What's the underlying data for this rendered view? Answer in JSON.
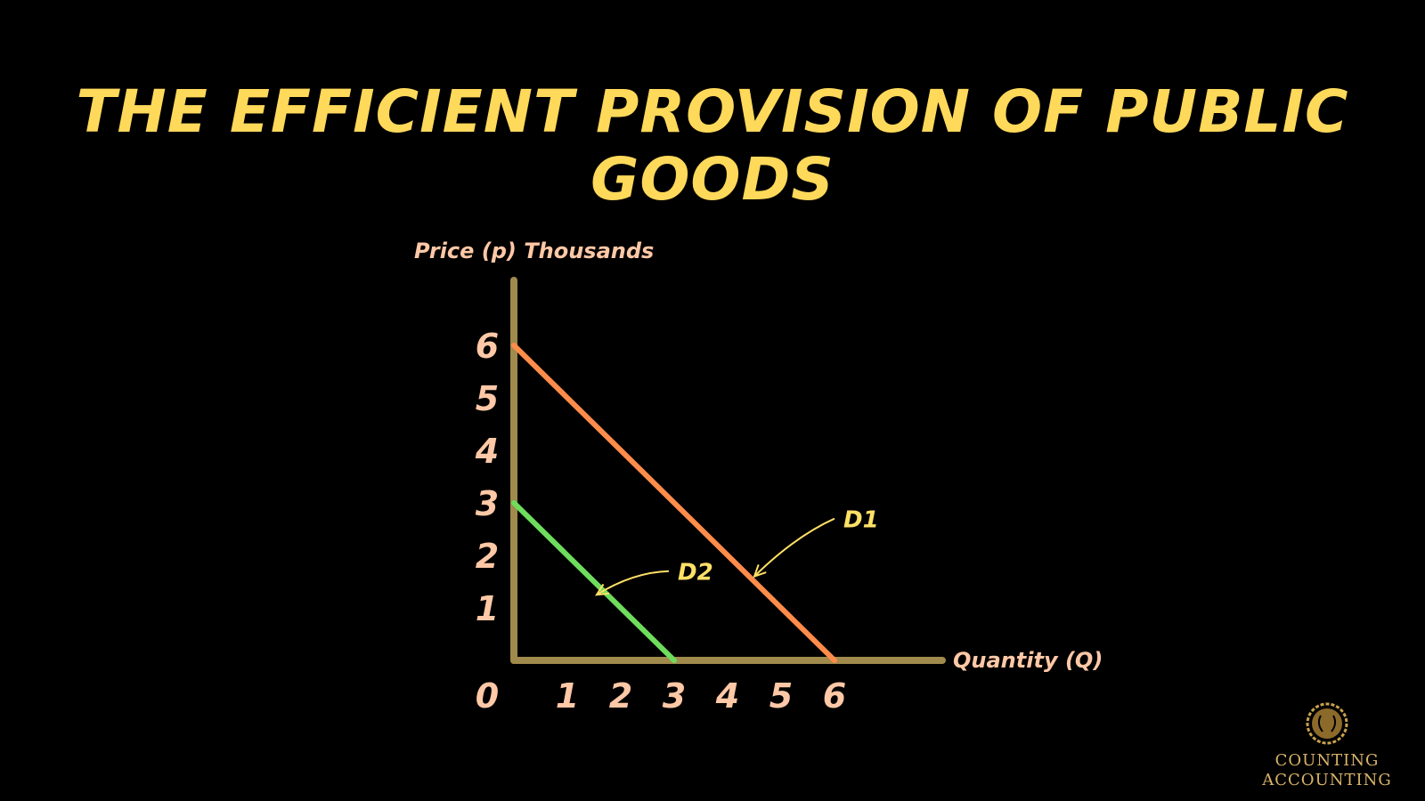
{
  "chart_data": {
    "type": "line",
    "title_lines": [
      "THE EFFICIENT PROVISION OF PUBLIC",
      "GOODS"
    ],
    "ylabel": "Price (p) Thousands",
    "xlabel": "Quantity (Q)",
    "x_ticks": [
      "0",
      "1",
      "2",
      "3",
      "4",
      "5",
      "6"
    ],
    "y_ticks": [
      "1",
      "2",
      "3",
      "4",
      "5",
      "6"
    ],
    "xlim": [
      0,
      8.3
    ],
    "ylim": [
      0,
      7.1
    ],
    "series": [
      {
        "name": "D1",
        "color": "#FF8C4A",
        "points": [
          [
            0,
            6
          ],
          [
            6,
            0
          ]
        ]
      },
      {
        "name": "D2",
        "color": "#6EDC5C",
        "points": [
          [
            0,
            3
          ],
          [
            3,
            0
          ]
        ]
      }
    ],
    "annotations": [
      {
        "text": "D1",
        "series": "D1",
        "label_at": [
          6,
          2.7
        ],
        "arrow_to": [
          4.5,
          1.6
        ]
      },
      {
        "text": "D2",
        "series": "D2",
        "label_at": [
          2.9,
          1.7
        ],
        "arrow_to": [
          1.55,
          1.25
        ]
      }
    ],
    "colors": {
      "axis": "#A08A4C",
      "tick_text": "#FFC8A6",
      "title": "#FFD95A",
      "annotation": "#FFE066"
    }
  },
  "logo": {
    "line1": "COUNTING",
    "line2": "ACCOUNTING",
    "icon": "laurel-emblem-icon"
  }
}
